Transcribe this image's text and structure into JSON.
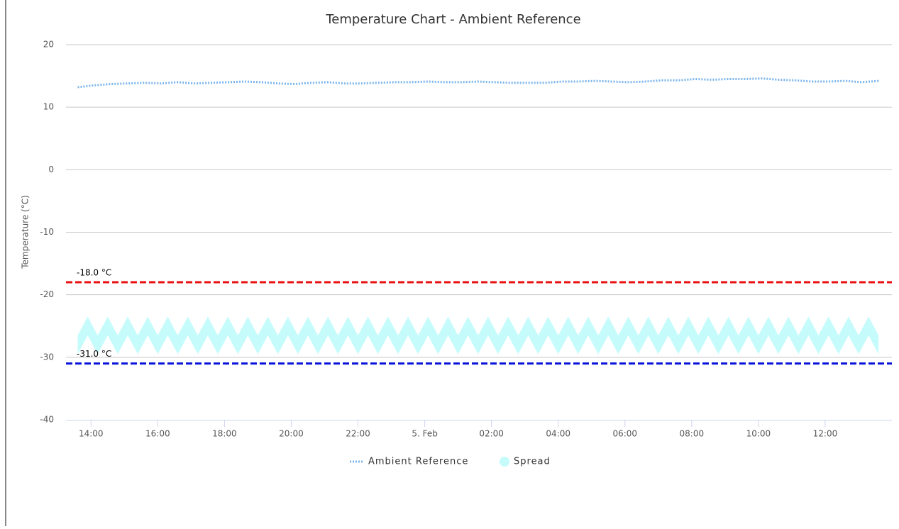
{
  "chart_data": {
    "type": "line",
    "title": "Temperature Chart - Ambient Reference",
    "y_axis_label": "Temperature (°C)",
    "ylim": [
      -40,
      20
    ],
    "yticks": [
      -40,
      -30,
      -20,
      -10,
      0,
      10,
      20
    ],
    "xlim": [
      13.25,
      38.0
    ],
    "xticks": [
      {
        "value": 14,
        "label": "14:00"
      },
      {
        "value": 16,
        "label": "16:00"
      },
      {
        "value": 18,
        "label": "18:00"
      },
      {
        "value": 20,
        "label": "20:00"
      },
      {
        "value": 22,
        "label": "22:00"
      },
      {
        "value": 24,
        "label": "5. Feb"
      },
      {
        "value": 26,
        "label": "02:00"
      },
      {
        "value": 28,
        "label": "04:00"
      },
      {
        "value": 30,
        "label": "06:00"
      },
      {
        "value": 32,
        "label": "08:00"
      },
      {
        "value": 34,
        "label": "10:00"
      },
      {
        "value": 36,
        "label": "12:00"
      }
    ],
    "grid": true,
    "legend": "bottom",
    "plot_lines": [
      {
        "value": -18,
        "label": "-18.0 °C",
        "color": "#e81010"
      },
      {
        "value": -31,
        "label": "-31.0 °C",
        "color": "#0a14d8"
      }
    ],
    "series": [
      {
        "name": "Ambient Reference",
        "type": "line",
        "color": "#7cb5ec",
        "x": [
          13.6,
          14.1,
          14.6,
          15.1,
          15.6,
          16.1,
          16.6,
          17.1,
          17.6,
          18.1,
          18.6,
          19.1,
          19.6,
          20.1,
          20.6,
          21.1,
          21.6,
          22.1,
          22.6,
          23.1,
          23.6,
          24.1,
          24.6,
          25.1,
          25.6,
          26.1,
          26.6,
          27.1,
          27.6,
          28.1,
          28.6,
          29.1,
          29.6,
          30.1,
          30.6,
          31.1,
          31.6,
          32.1,
          32.6,
          33.1,
          33.6,
          34.1,
          34.6,
          35.1,
          35.6,
          36.1,
          36.6,
          37.1,
          37.6
        ],
        "values": [
          13.2,
          13.5,
          13.7,
          13.8,
          13.9,
          13.8,
          14.0,
          13.8,
          13.9,
          14.0,
          14.1,
          14.0,
          13.8,
          13.7,
          13.9,
          14.0,
          13.8,
          13.8,
          13.9,
          14.0,
          14.0,
          14.1,
          14.0,
          14.0,
          14.1,
          14.0,
          13.9,
          13.9,
          13.9,
          14.1,
          14.1,
          14.2,
          14.1,
          14.0,
          14.1,
          14.3,
          14.3,
          14.5,
          14.4,
          14.5,
          14.5,
          14.6,
          14.4,
          14.3,
          14.1,
          14.1,
          14.2,
          14.0,
          14.2
        ]
      },
      {
        "name": "Spread",
        "type": "arearange",
        "color": "#c6fbfb",
        "x": [
          13.6,
          13.9,
          14.2,
          14.5,
          14.8,
          15.1,
          15.4,
          15.7,
          16.0,
          16.3,
          16.6,
          16.9,
          17.2,
          17.5,
          17.8,
          18.1,
          18.4,
          18.7,
          19.0,
          19.3,
          19.6,
          19.9,
          20.2,
          20.5,
          20.8,
          21.1,
          21.4,
          21.7,
          22.0,
          22.3,
          22.6,
          22.9,
          23.2,
          23.5,
          23.8,
          24.1,
          24.4,
          24.7,
          25.0,
          25.3,
          25.6,
          25.9,
          26.2,
          26.5,
          26.8,
          27.1,
          27.4,
          27.7,
          28.0,
          28.3,
          28.6,
          28.9,
          29.2,
          29.5,
          29.8,
          30.1,
          30.4,
          30.7,
          31.0,
          31.3,
          31.6,
          31.9,
          32.2,
          32.5,
          32.8,
          33.1,
          33.4,
          33.7,
          34.0,
          34.3,
          34.6,
          34.9,
          35.2,
          35.5,
          35.8,
          36.1,
          36.4,
          36.7,
          37.0,
          37.3,
          37.6
        ],
        "high": [
          -26.5,
          -23.5,
          -26.5,
          -23.5,
          -26.5,
          -23.5,
          -26.5,
          -23.5,
          -26.5,
          -23.5,
          -26.5,
          -23.5,
          -26.5,
          -23.5,
          -26.5,
          -23.5,
          -26.5,
          -23.5,
          -26.5,
          -23.5,
          -26.5,
          -23.5,
          -26.5,
          -23.5,
          -26.5,
          -23.5,
          -26.5,
          -23.5,
          -26.5,
          -23.5,
          -26.5,
          -23.5,
          -26.5,
          -23.5,
          -26.5,
          -23.5,
          -26.5,
          -23.5,
          -26.5,
          -23.5,
          -26.5,
          -23.5,
          -26.5,
          -23.5,
          -26.5,
          -23.5,
          -26.5,
          -23.5,
          -26.5,
          -23.5,
          -26.5,
          -23.5,
          -26.5,
          -23.5,
          -26.5,
          -23.5,
          -26.5,
          -23.5,
          -26.5,
          -23.5,
          -26.5,
          -23.5,
          -26.5,
          -23.5,
          -26.5,
          -23.5,
          -26.5,
          -23.5,
          -26.5,
          -23.5,
          -26.5,
          -23.5,
          -26.5,
          -23.5,
          -26.5,
          -23.5,
          -26.5,
          -23.5,
          -26.5,
          -23.5,
          -26.5
        ],
        "low": [
          -29.5,
          -26.5,
          -29.5,
          -26.5,
          -29.5,
          -26.5,
          -29.5,
          -26.5,
          -29.5,
          -26.5,
          -29.5,
          -26.5,
          -29.5,
          -26.5,
          -29.5,
          -26.5,
          -29.5,
          -26.5,
          -29.5,
          -26.5,
          -29.5,
          -26.5,
          -29.5,
          -26.5,
          -29.5,
          -26.5,
          -29.5,
          -26.5,
          -29.5,
          -26.5,
          -29.5,
          -26.5,
          -29.5,
          -26.5,
          -29.5,
          -26.5,
          -29.5,
          -26.5,
          -29.5,
          -26.5,
          -29.5,
          -26.5,
          -29.5,
          -26.5,
          -29.5,
          -26.5,
          -29.5,
          -26.5,
          -29.5,
          -26.5,
          -29.5,
          -26.5,
          -29.5,
          -26.5,
          -29.5,
          -26.5,
          -29.5,
          -26.5,
          -29.5,
          -26.5,
          -29.5,
          -26.5,
          -29.5,
          -26.5,
          -29.5,
          -26.5,
          -29.5,
          -26.5,
          -29.5,
          -26.5,
          -29.5,
          -26.5,
          -29.5,
          -26.5,
          -29.5,
          -26.5,
          -29.5,
          -26.5,
          -29.5,
          -26.5,
          -29.5
        ]
      }
    ]
  }
}
